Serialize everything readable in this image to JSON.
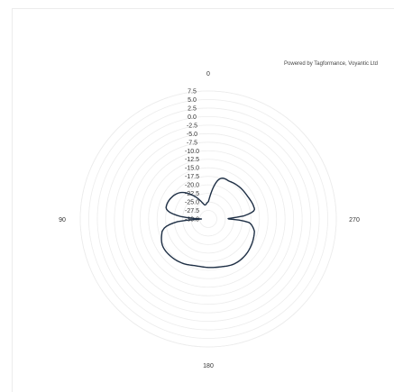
{
  "credit": "Powered by Tagformance, Voyantic Ltd",
  "chart_data": {
    "type": "polar-line",
    "title": "",
    "angle_labels": [
      {
        "angle": 0,
        "label": "0"
      },
      {
        "angle": 90,
        "label": "90"
      },
      {
        "angle": 180,
        "label": "180"
      },
      {
        "angle": 270,
        "label": "270"
      }
    ],
    "radial_ticks": [
      -30.0,
      -27.5,
      -25.0,
      -22.5,
      -20.0,
      -17.5,
      -15.0,
      -12.5,
      -10.0,
      -7.5,
      -5.0,
      -2.5,
      0.0,
      2.5,
      5.0,
      7.5
    ],
    "radial_tick_labels": [
      "-30.0",
      "-27.5",
      "-25.0",
      "-22.5",
      "-20.0",
      "-17.5",
      "-15.0",
      "-12.5",
      "-10.0",
      "-7.5",
      "-5.0",
      "-2.5",
      "0.0",
      "2.5",
      "5.0",
      "7.5"
    ],
    "r_range": [
      -30.0,
      7.5
    ],
    "angle_direction": "counterclockwise",
    "zero_location": "top",
    "grid": true,
    "series": [
      {
        "color": "#1e2f45",
        "angles": [
          0,
          15,
          30,
          45,
          60,
          75,
          80,
          85,
          88,
          90,
          92,
          95,
          100,
          105,
          120,
          135,
          150,
          165,
          180,
          195,
          210,
          225,
          240,
          255,
          260,
          265,
          268,
          270,
          272,
          275,
          280,
          285,
          300,
          315,
          330,
          345,
          360
        ],
        "values": [
          -25.0,
          -25.7,
          -22.5,
          -19.0,
          -17.5,
          -17.2,
          -18.5,
          -22.0,
          -26.0,
          -28.0,
          -26.0,
          -21.0,
          -17.5,
          -16.0,
          -14.5,
          -14.5,
          -15.0,
          -15.8,
          -15.8,
          -15.5,
          -14.8,
          -14.8,
          -15.3,
          -16.0,
          -16.8,
          -18.0,
          -21.0,
          -24.0,
          -23.5,
          -19.5,
          -16.5,
          -16.2,
          -16.7,
          -16.9,
          -17.3,
          -18.0,
          -25.0
        ]
      }
    ]
  }
}
